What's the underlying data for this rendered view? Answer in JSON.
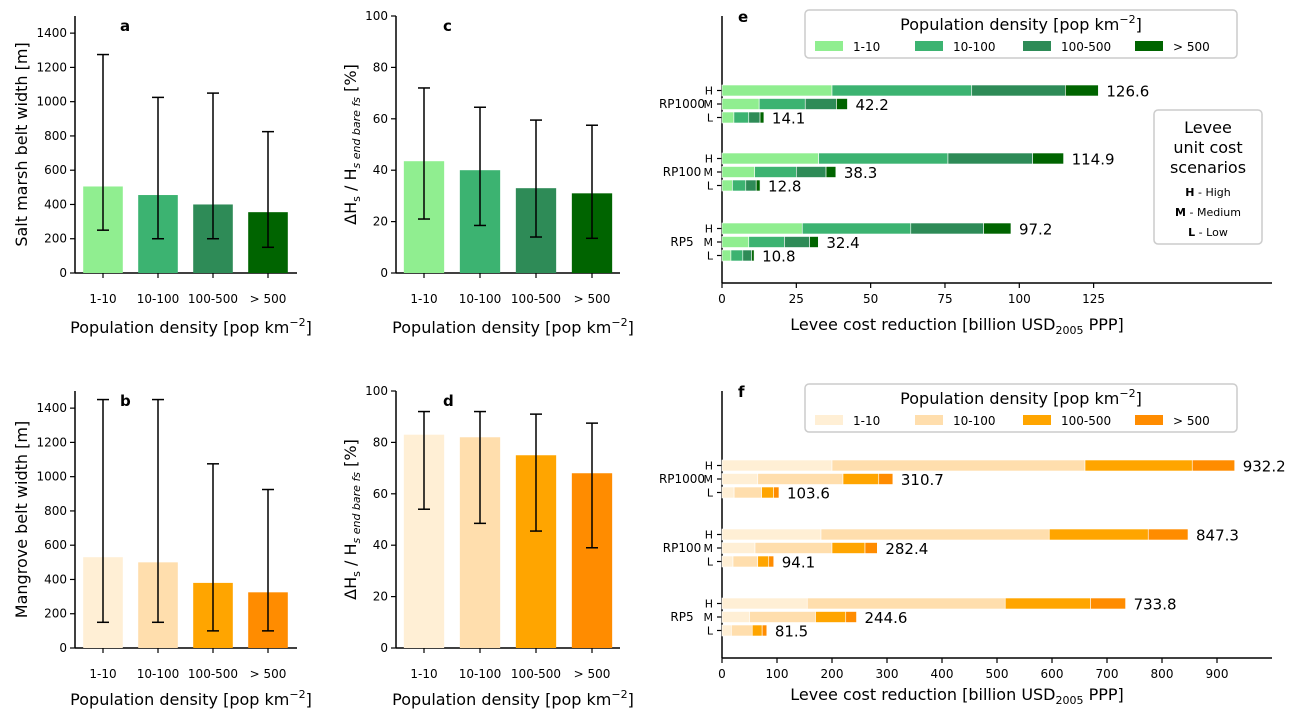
{
  "legend_title": "Population density [pop km",
  "legend_title_sup": "−2",
  "legend_title_end": "]",
  "cost_legend": {
    "title_lines": [
      "Levee",
      "unit cost",
      "scenarios"
    ],
    "entries": [
      {
        "letter": "H",
        "label": " - High"
      },
      {
        "letter": "M",
        "label": " - Medium"
      },
      {
        "letter": "L",
        "label": " - Low"
      }
    ]
  },
  "chart_data": [
    {
      "id": "a",
      "type": "bar",
      "panel_label": "a",
      "categories": [
        "1-10",
        "10-100",
        "100-500",
        "> 500"
      ],
      "values": [
        505,
        455,
        400,
        355
      ],
      "error_low": [
        250,
        200,
        200,
        150
      ],
      "error_high": [
        1275,
        1025,
        1050,
        825
      ],
      "ylabel": "Salt marsh belt width [m]",
      "xlabel": "Population density [pop km",
      "xlabel_sup": "−2",
      "xlabel_end": "]",
      "ylim": [
        0,
        1500
      ],
      "yticks": [
        0,
        200,
        400,
        600,
        800,
        1000,
        1200,
        1400
      ],
      "colors": [
        "#90ee90",
        "#3cb371",
        "#2e8b57",
        "#006400"
      ]
    },
    {
      "id": "b",
      "type": "bar",
      "panel_label": "b",
      "categories": [
        "1-10",
        "10-100",
        "100-500",
        "> 500"
      ],
      "values": [
        530,
        500,
        380,
        325
      ],
      "error_low": [
        150,
        150,
        100,
        100
      ],
      "error_high": [
        1450,
        1450,
        1075,
        925
      ],
      "ylabel": "Mangrove belt width [m]",
      "xlabel": "Population density [pop km",
      "xlabel_sup": "−2",
      "xlabel_end": "]",
      "ylim": [
        0,
        1500
      ],
      "yticks": [
        0,
        200,
        400,
        600,
        800,
        1000,
        1200,
        1400
      ],
      "colors": [
        "#ffefd5",
        "#ffdead",
        "#ffa500",
        "#ff8c00"
      ]
    },
    {
      "id": "c",
      "type": "bar",
      "panel_label": "c",
      "categories": [
        "1-10",
        "10-100",
        "100-500",
        "> 500"
      ],
      "values": [
        43.5,
        40,
        33,
        31
      ],
      "error_low": [
        21,
        18.5,
        14,
        13.5
      ],
      "error_high": [
        72,
        64.5,
        59.5,
        57.5
      ],
      "ylabel_main": "ΔH",
      "ylabel_sub1": "s",
      "ylabel_mid": " / H",
      "ylabel_sub2": "s end bare fs",
      "ylabel_end": " [%]",
      "xlabel": "Population density [pop km",
      "xlabel_sup": "−2",
      "xlabel_end": "]",
      "ylim": [
        0,
        100
      ],
      "yticks": [
        0,
        20,
        40,
        60,
        80,
        100
      ],
      "colors": [
        "#90ee90",
        "#3cb371",
        "#2e8b57",
        "#006400"
      ]
    },
    {
      "id": "d",
      "type": "bar",
      "panel_label": "d",
      "categories": [
        "1-10",
        "10-100",
        "100-500",
        "> 500"
      ],
      "values": [
        83,
        82,
        75,
        68
      ],
      "error_low": [
        54,
        48.5,
        45.5,
        39
      ],
      "error_high": [
        92,
        92,
        91,
        87.5
      ],
      "ylabel_main": "ΔH",
      "ylabel_sub1": "s",
      "ylabel_mid": " / H",
      "ylabel_sub2": "s end bare fs",
      "ylabel_end": " [%]",
      "xlabel": "Population density [pop km",
      "xlabel_sup": "−2",
      "xlabel_end": "]",
      "ylim": [
        0,
        100
      ],
      "yticks": [
        0,
        20,
        40,
        60,
        80,
        100
      ],
      "colors": [
        "#ffefd5",
        "#ffdead",
        "#ffa500",
        "#ff8c00"
      ]
    },
    {
      "id": "e",
      "type": "stacked-bar-horizontal",
      "panel_label": "e",
      "series_names": [
        "1-10",
        "10-100",
        "100-500",
        "> 500"
      ],
      "colors": [
        "#90ee90",
        "#3cb371",
        "#2e8b57",
        "#006400"
      ],
      "groups": [
        {
          "name": "RP1000",
          "bars": [
            {
              "level": "H",
              "segments": [
                37,
                47,
                31.5,
                11.1
              ],
              "total": "126.6"
            },
            {
              "level": "M",
              "segments": [
                12.5,
                15.5,
                10.5,
                3.7
              ],
              "total": "42.2"
            },
            {
              "level": "L",
              "segments": [
                4,
                5,
                3.8,
                1.3
              ],
              "total": "14.1"
            }
          ]
        },
        {
          "name": "RP100",
          "bars": [
            {
              "level": "H",
              "segments": [
                32.5,
                43.5,
                28.5,
                10.4
              ],
              "total": "114.9"
            },
            {
              "level": "M",
              "segments": [
                11,
                14,
                10,
                3.3
              ],
              "total": "38.3"
            },
            {
              "level": "L",
              "segments": [
                3.5,
                4.5,
                3.5,
                1.3
              ],
              "total": "12.8"
            }
          ]
        },
        {
          "name": "RP5",
          "bars": [
            {
              "level": "H",
              "segments": [
                27,
                36.5,
                24.5,
                9.2
              ],
              "total": "97.2"
            },
            {
              "level": "M",
              "segments": [
                9,
                12,
                8.5,
                2.9
              ],
              "total": "32.4"
            },
            {
              "level": "L",
              "segments": [
                3,
                4,
                3,
                0.8
              ],
              "total": "10.8"
            }
          ]
        }
      ],
      "xlabel": "Levee cost reduction [billion USD",
      "xlabel_sub": "2005",
      "xlabel_end": " PPP]",
      "xlim": [
        0,
        185
      ],
      "xticks": [
        0,
        25,
        50,
        75,
        100,
        125
      ]
    },
    {
      "id": "f",
      "type": "stacked-bar-horizontal",
      "panel_label": "f",
      "series_names": [
        "1-10",
        "10-100",
        "100-500",
        "> 500"
      ],
      "colors": [
        "#ffefd5",
        "#ffdead",
        "#ffa500",
        "#ff8c00"
      ],
      "groups": [
        {
          "name": "RP1000",
          "bars": [
            {
              "level": "H",
              "segments": [
                200,
                460,
                195,
                77.2
              ],
              "total": "932.2"
            },
            {
              "level": "M",
              "segments": [
                65,
                155,
                65,
                25.7
              ],
              "total": "310.7"
            },
            {
              "level": "L",
              "segments": [
                22,
                50,
                22,
                9.6
              ],
              "total": "103.6"
            }
          ]
        },
        {
          "name": "RP100",
          "bars": [
            {
              "level": "H",
              "segments": [
                180,
                415,
                180,
                72.3
              ],
              "total": "847.3"
            },
            {
              "level": "M",
              "segments": [
                60,
                140,
                60,
                22.4
              ],
              "total": "282.4"
            },
            {
              "level": "L",
              "segments": [
                20,
                45,
                20,
                9.1
              ],
              "total": "94.1"
            }
          ]
        },
        {
          "name": "RP5",
          "bars": [
            {
              "level": "H",
              "segments": [
                155,
                360,
                155,
                63.8
              ],
              "total": "733.8"
            },
            {
              "level": "M",
              "segments": [
                50,
                120,
                55,
                19.6
              ],
              "total": "244.6"
            },
            {
              "level": "L",
              "segments": [
                17,
                38,
                18,
                8.5
              ],
              "total": "81.5"
            }
          ]
        }
      ],
      "xlabel": "Levee cost reduction [billion USD",
      "xlabel_sub": "2005",
      "xlabel_end": " PPP]",
      "xlim": [
        0,
        1000
      ],
      "xticks": [
        0,
        100,
        200,
        300,
        400,
        500,
        600,
        700,
        800,
        900
      ]
    }
  ]
}
